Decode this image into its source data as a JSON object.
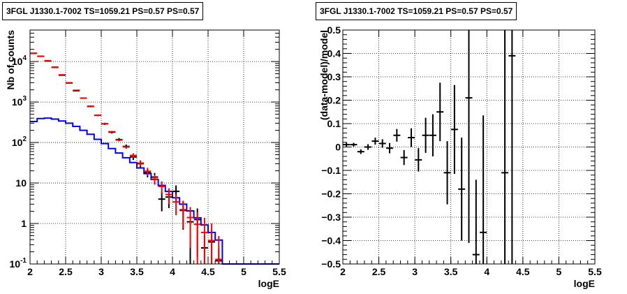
{
  "colors": {
    "data": "#000000",
    "model": "#ff0000",
    "component": "#0000ff",
    "grid": "#000000"
  },
  "panels": {
    "left": {
      "title": "3FGL J1330.1-7002 TS=1059.21 PS=0.57 PS=0.57",
      "xlabel": "logE",
      "ylabel": "Nb of counts"
    },
    "right": {
      "title": "3FGL J1330.1-7002 TS=1059.21 PS=0.57 PS=0.57",
      "xlabel": "logE",
      "ylabel": "(data-model)/model"
    }
  },
  "chart_data": [
    {
      "type": "line",
      "title": "3FGL J1330.1-7002 TS=1059.21 PS=0.57 PS=0.57",
      "xlabel": "logE",
      "ylabel": "Nb of counts",
      "xlim": [
        2,
        5.5
      ],
      "ylim": [
        0.1,
        60000
      ],
      "yscale": "log",
      "grid": true,
      "x_ticks": [
        "2",
        "2.5",
        "3",
        "3.5",
        "4",
        "4.5",
        "5",
        "5.5"
      ],
      "y_ticks": [
        "10^-1",
        "1",
        "10",
        "10^2",
        "10^3",
        "10^4"
      ],
      "bin_edges": [
        2.0,
        2.1,
        2.2,
        2.3,
        2.4,
        2.5,
        2.6,
        2.7,
        2.8,
        2.9,
        3.0,
        3.1,
        3.2,
        3.3,
        3.4,
        3.5,
        3.6,
        3.7,
        3.8,
        3.9,
        4.0,
        4.1,
        4.2,
        4.3,
        4.4,
        4.5,
        4.6,
        4.7,
        4.8,
        4.9,
        5.0,
        5.1,
        5.2,
        5.3,
        5.4,
        5.5
      ],
      "series": [
        {
          "role": "data",
          "style": "errorbar",
          "x": [
            2.05,
            2.15,
            2.25,
            2.35,
            2.45,
            2.55,
            2.65,
            2.75,
            2.85,
            2.95,
            3.05,
            3.15,
            3.25,
            3.35,
            3.45,
            3.55,
            3.65,
            3.75,
            3.85,
            3.95,
            4.05,
            4.15,
            4.25,
            4.35,
            4.45,
            4.55,
            4.65
          ],
          "y": [
            16000,
            13500,
            10300,
            7200,
            4600,
            2950,
            1900,
            1250,
            780,
            470,
            290,
            180,
            118,
            80,
            44,
            30,
            18,
            14,
            4,
            4.5,
            6.2,
            2.1,
            1.1,
            1.25,
            0.25,
            0.35,
            0.12
          ],
          "yerr_low": [
            130,
            115,
            100,
            85,
            68,
            55,
            44,
            36,
            28,
            22,
            17,
            13,
            11,
            9,
            7,
            5.5,
            4.2,
            3.7,
            2.0,
            2.1,
            2.5,
            1.4,
            1.0,
            1.1,
            0.25,
            0.35,
            0.12
          ],
          "yerr_high": [
            130,
            115,
            100,
            85,
            68,
            55,
            44,
            36,
            28,
            22,
            17,
            13,
            11,
            9,
            7,
            5.5,
            4.2,
            3.7,
            2.0,
            2.1,
            2.5,
            1.4,
            1.0,
            1.1,
            0.25,
            0.35,
            0.12
          ]
        },
        {
          "role": "model",
          "style": "errorbar",
          "x": [
            2.05,
            2.15,
            2.25,
            2.35,
            2.45,
            2.55,
            2.65,
            2.75,
            2.85,
            2.95,
            3.05,
            3.15,
            3.25,
            3.35,
            3.45,
            3.55,
            3.65,
            3.75,
            3.85,
            3.95,
            4.05,
            4.15,
            4.25,
            4.35,
            4.45,
            4.55,
            4.65
          ],
          "y": [
            16000,
            13500,
            10500,
            7300,
            4700,
            3000,
            1950,
            1250,
            790,
            470,
            290,
            185,
            115,
            78,
            48,
            31,
            19.5,
            12.5,
            8.2,
            5.2,
            3.4,
            2.2,
            1.4,
            0.95,
            0.6,
            0.38,
            0.13
          ],
          "yerr_low": [
            0,
            0,
            0,
            0,
            0,
            0,
            0,
            0,
            0,
            0,
            0,
            0,
            0,
            0,
            6.5,
            5.2,
            4.2,
            3.4,
            2.8,
            2.2,
            1.8,
            1.45,
            1.15,
            0.94,
            0.6,
            0.38,
            0.1
          ],
          "yerr_high": [
            0,
            0,
            0,
            0,
            0,
            0,
            0,
            0,
            0,
            0,
            0,
            0,
            0,
            0,
            6.5,
            5.2,
            4.2,
            3.4,
            2.8,
            2.2,
            1.8,
            1.45,
            1.15,
            0.94,
            0.78,
            0.62,
            0.36
          ]
        },
        {
          "role": "component",
          "style": "step",
          "y": [
            330,
            390,
            400,
            380,
            340,
            300,
            250,
            200,
            160,
            120,
            94,
            71,
            55,
            42,
            32,
            23.5,
            17,
            12.2,
            8.7,
            6.2,
            4.3,
            3.0,
            2.05,
            1.38,
            0.92,
            0.6,
            0.39,
            0.1,
            0.1,
            0.1,
            0.1,
            0.1,
            0.1,
            0.1,
            0.1
          ]
        }
      ]
    },
    {
      "type": "scatter",
      "title": "3FGL J1330.1-7002 TS=1059.21 PS=0.57 PS=0.57",
      "xlabel": "logE",
      "ylabel": "(data-model)/model",
      "xlim": [
        2,
        5.5
      ],
      "ylim": [
        -0.5,
        0.5
      ],
      "grid": true,
      "x_ticks": [
        "2",
        "2.5",
        "3",
        "3.5",
        "4",
        "4.5",
        "5",
        "5.5"
      ],
      "y_ticks": [
        "−0.5",
        "−0.4",
        "−0.3",
        "−0.2",
        "−0.1",
        "0",
        "0.1",
        "0.2",
        "0.3",
        "0.4",
        "0.5"
      ],
      "series": [
        {
          "role": "residual",
          "style": "errorbar",
          "x": [
            2.05,
            2.15,
            2.25,
            2.35,
            2.45,
            2.55,
            2.65,
            2.75,
            2.85,
            2.95,
            3.05,
            3.15,
            3.25,
            3.35,
            3.45,
            3.55,
            3.65,
            3.75,
            3.85,
            3.95,
            4.25,
            4.35
          ],
          "y": [
            0.01,
            0.01,
            -0.02,
            0.0,
            0.025,
            0.015,
            -0.005,
            0.05,
            -0.045,
            0.04,
            -0.055,
            0.05,
            0.05,
            0.15,
            -0.11,
            0.075,
            -0.18,
            0.21,
            -0.46,
            -0.365,
            -0.11,
            0.39
          ],
          "yerr": [
            0.008,
            0.008,
            0.01,
            0.012,
            0.015,
            0.018,
            0.022,
            0.027,
            0.032,
            0.04,
            0.05,
            0.075,
            0.09,
            0.125,
            0.135,
            0.19,
            0.22,
            0.62,
            0.32,
            0.5,
            0.9,
            0.9
          ]
        }
      ]
    }
  ]
}
